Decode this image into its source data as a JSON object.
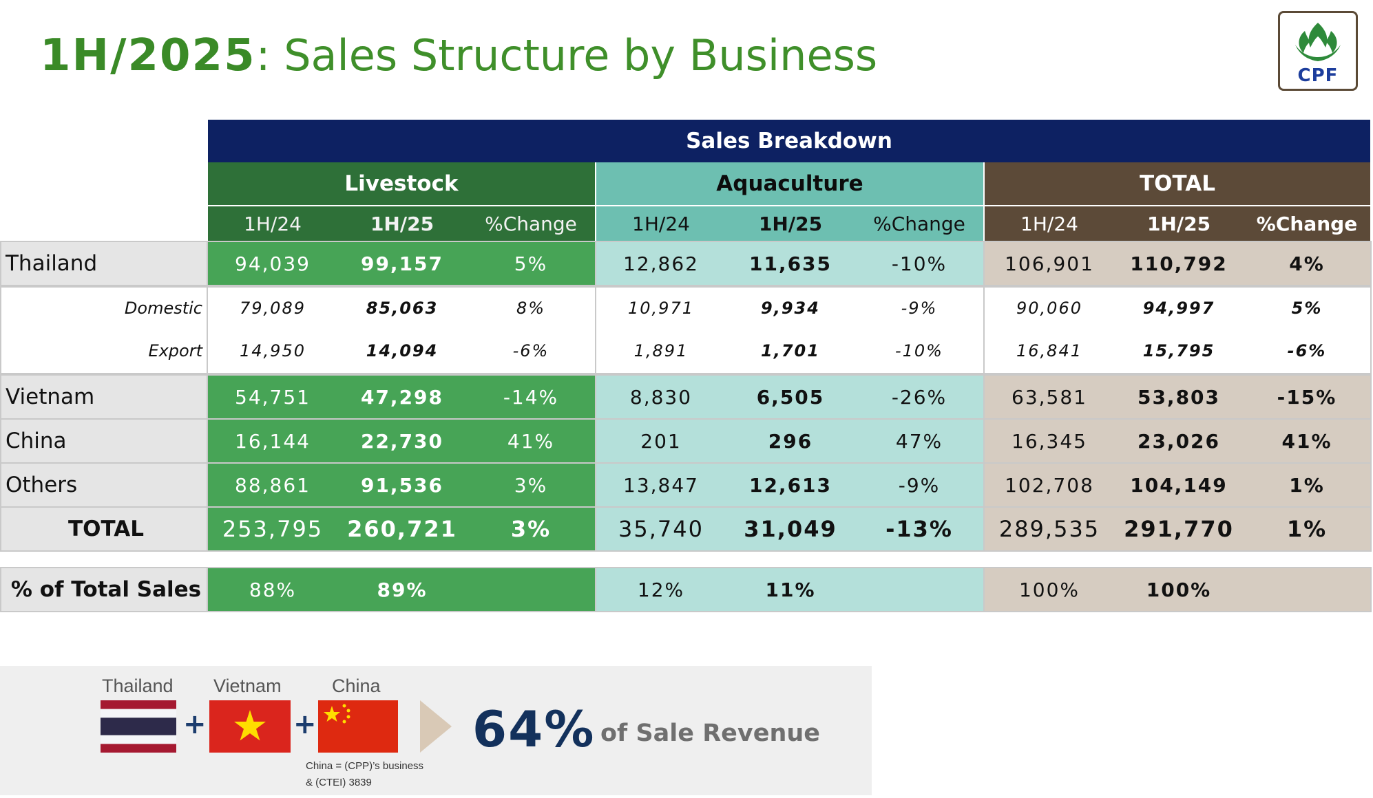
{
  "title": {
    "bold": "1H/2025",
    "rest": ": Sales Structure by Business"
  },
  "logo": {
    "text": "CPF"
  },
  "table": {
    "header_main": "Sales Breakdown",
    "segments": [
      "Livestock",
      "Aquaculture",
      "TOTAL"
    ],
    "subheaders": [
      "1H/24",
      "1H/25",
      "%Change"
    ],
    "rows": {
      "thailand": {
        "label": "Thailand",
        "values": [
          "94,039",
          "99,157",
          "5%",
          "12,862",
          "11,635",
          "-10%",
          "106,901",
          "110,792",
          "4%"
        ]
      },
      "domestic": {
        "label": "Domestic",
        "values": [
          "79,089",
          "85,063",
          "8%",
          "10,971",
          "9,934",
          "-9%",
          "90,060",
          "94,997",
          "5%"
        ]
      },
      "export": {
        "label": "Export",
        "values": [
          "14,950",
          "14,094",
          "-6%",
          "1,891",
          "1,701",
          "-10%",
          "16,841",
          "15,795",
          "-6%"
        ]
      },
      "vietnam": {
        "label": "Vietnam",
        "values": [
          "54,751",
          "47,298",
          "-14%",
          "8,830",
          "6,505",
          "-26%",
          "63,581",
          "53,803",
          "-15%"
        ]
      },
      "china": {
        "label": "China",
        "values": [
          "16,144",
          "22,730",
          "41%",
          "201",
          "296",
          "47%",
          "16,345",
          "23,026",
          "41%"
        ]
      },
      "others": {
        "label": "Others",
        "values": [
          "88,861",
          "91,536",
          "3%",
          "13,847",
          "12,613",
          "-9%",
          "102,708",
          "104,149",
          "1%"
        ]
      },
      "total": {
        "label": "TOTAL",
        "values": [
          "253,795",
          "260,721",
          "3%",
          "35,740",
          "31,049",
          "-13%",
          "289,535",
          "291,770",
          "1%"
        ]
      },
      "share": {
        "label": "% of Total Sales",
        "values": [
          "88%",
          "89%",
          "",
          "12%",
          "11%",
          "",
          "100%",
          "100%",
          ""
        ]
      }
    }
  },
  "banner": {
    "flags": [
      {
        "label": "Thailand",
        "icon": "thailand-flag-icon"
      },
      {
        "label": "Vietnam",
        "icon": "vietnam-flag-icon"
      },
      {
        "label": "China",
        "icon": "china-flag-icon"
      }
    ],
    "plus": "+",
    "note_line1": "China = (CPP)’s  business",
    "note_line2": "& (CTEI) 3839",
    "percent": "64%",
    "percent_text": "of Sale Revenue",
    "colors": {
      "navy": "#13315c",
      "arrow": "#d9c9b6"
    }
  },
  "colors": {
    "header_navy": "#0d2162",
    "livestock_header": "#2e7038",
    "livestock_fill": "#47a456",
    "aqua_header": "#6dbfb1",
    "aqua_fill": "#b4e0da",
    "total_header": "#5c4a38",
    "total_fill": "#d6ccc1",
    "title_green": "#3f8f2a"
  }
}
